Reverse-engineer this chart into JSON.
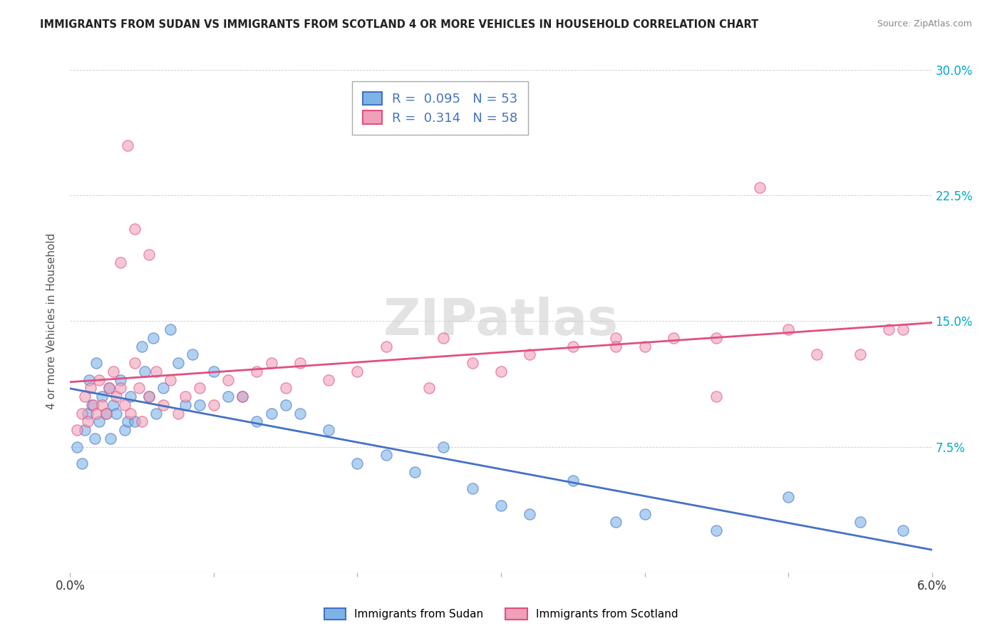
{
  "title": "IMMIGRANTS FROM SUDAN VS IMMIGRANTS FROM SCOTLAND 4 OR MORE VEHICLES IN HOUSEHOLD CORRELATION CHART",
  "source": "Source: ZipAtlas.com",
  "ylabel": "4 or more Vehicles in Household",
  "xlim": [
    0.0,
    6.0
  ],
  "ylim": [
    0.0,
    30.0
  ],
  "yticks": [
    0.0,
    7.5,
    15.0,
    22.5,
    30.0
  ],
  "legend_sudan_R": "0.095",
  "legend_sudan_N": "53",
  "legend_scotland_R": "0.314",
  "legend_scotland_N": "58",
  "color_sudan": "#7eb3e8",
  "color_scotland": "#f0a0b8",
  "color_sudan_line": "#4472c4",
  "color_scotland_line": "#e05080",
  "watermark": "ZIPatlas",
  "sudan_x": [
    0.05,
    0.08,
    0.1,
    0.12,
    0.13,
    0.15,
    0.17,
    0.18,
    0.2,
    0.22,
    0.25,
    0.27,
    0.28,
    0.3,
    0.32,
    0.35,
    0.38,
    0.4,
    0.42,
    0.45,
    0.5,
    0.52,
    0.55,
    0.58,
    0.6,
    0.65,
    0.7,
    0.75,
    0.8,
    0.85,
    0.9,
    1.0,
    1.1,
    1.2,
    1.3,
    1.4,
    1.5,
    1.6,
    1.8,
    2.0,
    2.2,
    2.4,
    2.6,
    2.8,
    3.0,
    3.2,
    3.5,
    3.8,
    4.0,
    4.5,
    5.0,
    5.5,
    5.8
  ],
  "sudan_y": [
    7.5,
    6.5,
    8.5,
    9.5,
    11.5,
    10.0,
    8.0,
    12.5,
    9.0,
    10.5,
    9.5,
    11.0,
    8.0,
    10.0,
    9.5,
    11.5,
    8.5,
    9.0,
    10.5,
    9.0,
    13.5,
    12.0,
    10.5,
    14.0,
    9.5,
    11.0,
    14.5,
    12.5,
    10.0,
    13.0,
    10.0,
    12.0,
    10.5,
    10.5,
    9.0,
    9.5,
    10.0,
    9.5,
    8.5,
    6.5,
    7.0,
    6.0,
    7.5,
    5.0,
    4.0,
    3.5,
    5.5,
    3.0,
    3.5,
    2.5,
    4.5,
    3.0,
    2.5
  ],
  "scotland_x": [
    0.05,
    0.08,
    0.1,
    0.12,
    0.14,
    0.16,
    0.18,
    0.2,
    0.22,
    0.25,
    0.27,
    0.3,
    0.32,
    0.35,
    0.38,
    0.4,
    0.42,
    0.45,
    0.48,
    0.5,
    0.55,
    0.6,
    0.65,
    0.7,
    0.75,
    0.8,
    0.9,
    1.0,
    1.1,
    1.2,
    1.3,
    1.5,
    1.6,
    1.8,
    2.0,
    2.2,
    2.5,
    2.8,
    3.0,
    3.2,
    3.5,
    3.8,
    4.0,
    4.2,
    4.5,
    4.8,
    5.0,
    5.2,
    5.5,
    5.7,
    0.35,
    0.45,
    0.55,
    1.4,
    2.6,
    3.8,
    4.5,
    5.8
  ],
  "scotland_y": [
    8.5,
    9.5,
    10.5,
    9.0,
    11.0,
    10.0,
    9.5,
    11.5,
    10.0,
    9.5,
    11.0,
    12.0,
    10.5,
    11.0,
    10.0,
    25.5,
    9.5,
    12.5,
    11.0,
    9.0,
    10.5,
    12.0,
    10.0,
    11.5,
    9.5,
    10.5,
    11.0,
    10.0,
    11.5,
    10.5,
    12.0,
    11.0,
    12.5,
    11.5,
    12.0,
    13.5,
    11.0,
    12.5,
    12.0,
    13.0,
    13.5,
    14.0,
    13.5,
    14.0,
    14.0,
    23.0,
    14.5,
    13.0,
    13.0,
    14.5,
    18.5,
    20.5,
    19.0,
    12.5,
    14.0,
    13.5,
    10.5,
    14.5
  ]
}
